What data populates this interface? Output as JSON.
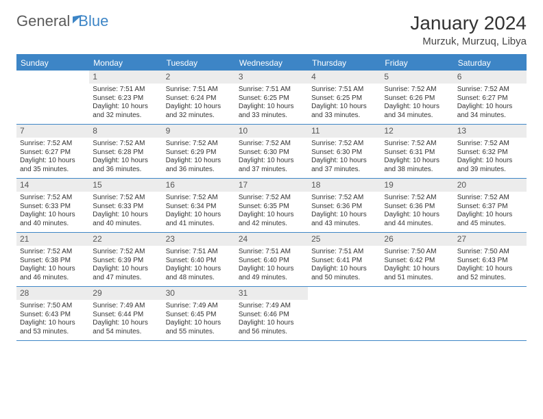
{
  "brand": {
    "part1": "General",
    "part2": "Blue"
  },
  "title": "January 2024",
  "location": "Murzuk, Murzuq, Libya",
  "colors": {
    "accent": "#3d85c6",
    "dayHeaderBg": "#ececec",
    "text": "#333333"
  },
  "weekdays": [
    "Sunday",
    "Monday",
    "Tuesday",
    "Wednesday",
    "Thursday",
    "Friday",
    "Saturday"
  ],
  "layout": {
    "firstDayOffset": 1,
    "daysInMonth": 31
  },
  "days": {
    "1": {
      "sunrise": "Sunrise: 7:51 AM",
      "sunset": "Sunset: 6:23 PM",
      "daylight": "Daylight: 10 hours and 32 minutes."
    },
    "2": {
      "sunrise": "Sunrise: 7:51 AM",
      "sunset": "Sunset: 6:24 PM",
      "daylight": "Daylight: 10 hours and 32 minutes."
    },
    "3": {
      "sunrise": "Sunrise: 7:51 AM",
      "sunset": "Sunset: 6:25 PM",
      "daylight": "Daylight: 10 hours and 33 minutes."
    },
    "4": {
      "sunrise": "Sunrise: 7:51 AM",
      "sunset": "Sunset: 6:25 PM",
      "daylight": "Daylight: 10 hours and 33 minutes."
    },
    "5": {
      "sunrise": "Sunrise: 7:52 AM",
      "sunset": "Sunset: 6:26 PM",
      "daylight": "Daylight: 10 hours and 34 minutes."
    },
    "6": {
      "sunrise": "Sunrise: 7:52 AM",
      "sunset": "Sunset: 6:27 PM",
      "daylight": "Daylight: 10 hours and 34 minutes."
    },
    "7": {
      "sunrise": "Sunrise: 7:52 AM",
      "sunset": "Sunset: 6:27 PM",
      "daylight": "Daylight: 10 hours and 35 minutes."
    },
    "8": {
      "sunrise": "Sunrise: 7:52 AM",
      "sunset": "Sunset: 6:28 PM",
      "daylight": "Daylight: 10 hours and 36 minutes."
    },
    "9": {
      "sunrise": "Sunrise: 7:52 AM",
      "sunset": "Sunset: 6:29 PM",
      "daylight": "Daylight: 10 hours and 36 minutes."
    },
    "10": {
      "sunrise": "Sunrise: 7:52 AM",
      "sunset": "Sunset: 6:30 PM",
      "daylight": "Daylight: 10 hours and 37 minutes."
    },
    "11": {
      "sunrise": "Sunrise: 7:52 AM",
      "sunset": "Sunset: 6:30 PM",
      "daylight": "Daylight: 10 hours and 37 minutes."
    },
    "12": {
      "sunrise": "Sunrise: 7:52 AM",
      "sunset": "Sunset: 6:31 PM",
      "daylight": "Daylight: 10 hours and 38 minutes."
    },
    "13": {
      "sunrise": "Sunrise: 7:52 AM",
      "sunset": "Sunset: 6:32 PM",
      "daylight": "Daylight: 10 hours and 39 minutes."
    },
    "14": {
      "sunrise": "Sunrise: 7:52 AM",
      "sunset": "Sunset: 6:33 PM",
      "daylight": "Daylight: 10 hours and 40 minutes."
    },
    "15": {
      "sunrise": "Sunrise: 7:52 AM",
      "sunset": "Sunset: 6:33 PM",
      "daylight": "Daylight: 10 hours and 40 minutes."
    },
    "16": {
      "sunrise": "Sunrise: 7:52 AM",
      "sunset": "Sunset: 6:34 PM",
      "daylight": "Daylight: 10 hours and 41 minutes."
    },
    "17": {
      "sunrise": "Sunrise: 7:52 AM",
      "sunset": "Sunset: 6:35 PM",
      "daylight": "Daylight: 10 hours and 42 minutes."
    },
    "18": {
      "sunrise": "Sunrise: 7:52 AM",
      "sunset": "Sunset: 6:36 PM",
      "daylight": "Daylight: 10 hours and 43 minutes."
    },
    "19": {
      "sunrise": "Sunrise: 7:52 AM",
      "sunset": "Sunset: 6:36 PM",
      "daylight": "Daylight: 10 hours and 44 minutes."
    },
    "20": {
      "sunrise": "Sunrise: 7:52 AM",
      "sunset": "Sunset: 6:37 PM",
      "daylight": "Daylight: 10 hours and 45 minutes."
    },
    "21": {
      "sunrise": "Sunrise: 7:52 AM",
      "sunset": "Sunset: 6:38 PM",
      "daylight": "Daylight: 10 hours and 46 minutes."
    },
    "22": {
      "sunrise": "Sunrise: 7:52 AM",
      "sunset": "Sunset: 6:39 PM",
      "daylight": "Daylight: 10 hours and 47 minutes."
    },
    "23": {
      "sunrise": "Sunrise: 7:51 AM",
      "sunset": "Sunset: 6:40 PM",
      "daylight": "Daylight: 10 hours and 48 minutes."
    },
    "24": {
      "sunrise": "Sunrise: 7:51 AM",
      "sunset": "Sunset: 6:40 PM",
      "daylight": "Daylight: 10 hours and 49 minutes."
    },
    "25": {
      "sunrise": "Sunrise: 7:51 AM",
      "sunset": "Sunset: 6:41 PM",
      "daylight": "Daylight: 10 hours and 50 minutes."
    },
    "26": {
      "sunrise": "Sunrise: 7:50 AM",
      "sunset": "Sunset: 6:42 PM",
      "daylight": "Daylight: 10 hours and 51 minutes."
    },
    "27": {
      "sunrise": "Sunrise: 7:50 AM",
      "sunset": "Sunset: 6:43 PM",
      "daylight": "Daylight: 10 hours and 52 minutes."
    },
    "28": {
      "sunrise": "Sunrise: 7:50 AM",
      "sunset": "Sunset: 6:43 PM",
      "daylight": "Daylight: 10 hours and 53 minutes."
    },
    "29": {
      "sunrise": "Sunrise: 7:49 AM",
      "sunset": "Sunset: 6:44 PM",
      "daylight": "Daylight: 10 hours and 54 minutes."
    },
    "30": {
      "sunrise": "Sunrise: 7:49 AM",
      "sunset": "Sunset: 6:45 PM",
      "daylight": "Daylight: 10 hours and 55 minutes."
    },
    "31": {
      "sunrise": "Sunrise: 7:49 AM",
      "sunset": "Sunset: 6:46 PM",
      "daylight": "Daylight: 10 hours and 56 minutes."
    }
  }
}
